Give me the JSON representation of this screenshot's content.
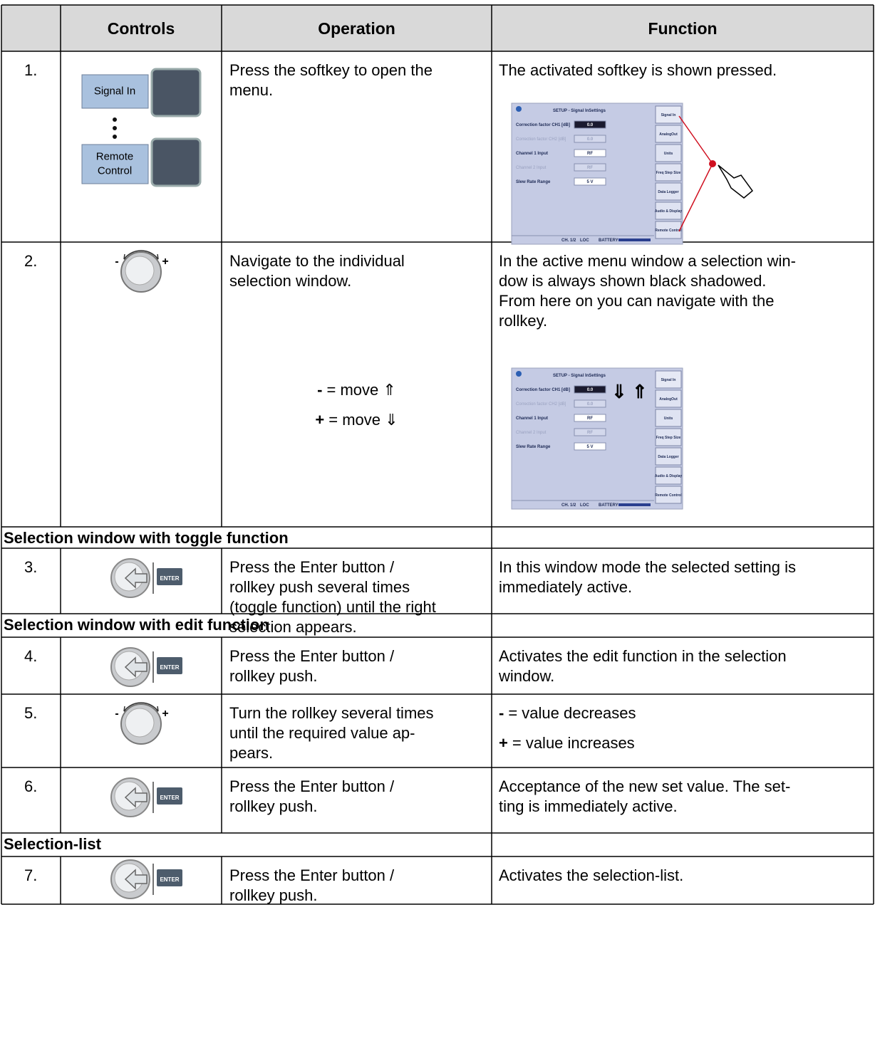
{
  "header": {
    "columns": [
      "Controls",
      "Operation",
      "Function"
    ]
  },
  "rows": [
    {
      "number": "1.",
      "softkeys": [
        [
          "Signal In"
        ],
        [
          "Remote",
          "Control"
        ]
      ],
      "operation": [
        "Press the softkey to open the",
        "menu."
      ],
      "function": [
        "The activated softkey is shown pressed."
      ],
      "screenshot": {
        "title": "SETUP - Signal InSettings",
        "fields": [
          {
            "label": "Correction factor CH1 [dB]",
            "value": "0.0"
          },
          {
            "label": "Correction factor CH2 [dB]",
            "value": "0.0"
          },
          {
            "label": "Channel 1 Input",
            "value": "RF"
          },
          {
            "label": "Channel 2 Input",
            "value": "RF"
          },
          {
            "label": "Slew Rate Range",
            "value": "5 V"
          }
        ],
        "softkeys": [
          "Signal In",
          "AnalogOut",
          "Units",
          "Freq Step Size",
          "Data Logger",
          "Audio & Display",
          "Remote Control"
        ],
        "status": [
          "CH. 1/2",
          "LOC",
          "BATTERY"
        ]
      }
    },
    {
      "number": "2.",
      "knob": [
        "-",
        "+"
      ],
      "operation": [
        "Navigate to the individual",
        "selection window."
      ],
      "moves": [
        {
          "sign": "-",
          "text": "= move ⇑"
        },
        {
          "sign": "+",
          "text": "= move ⇓"
        }
      ],
      "function": [
        "In the active menu window a selection win-",
        "dow is always shown black shadowed.",
        "From here on you can navigate with the",
        "rollkey."
      ],
      "screenshot": {
        "title": "SETUP - Signal InSettings",
        "arrows": "⇓ ⇑",
        "fields": [
          {
            "label": "Correction factor CH1 [dB]",
            "value": "0.0"
          },
          {
            "label": "Correction factor CH2 [dB]",
            "value": "0.0"
          },
          {
            "label": "Channel 1 Input",
            "value": "RF"
          },
          {
            "label": "Channel 2 Input",
            "value": "RF"
          },
          {
            "label": "Slew Rate Range",
            "value": "5 V"
          }
        ],
        "softkeys": [
          "Signal In",
          "AnalogOut",
          "Units",
          "Freq Step Size",
          "Data Logger",
          "Audio & Display",
          "Remote Control"
        ],
        "status": [
          "CH. 1/2",
          "LOC",
          "BATTERY"
        ]
      }
    },
    {
      "section": "Selection window with toggle function"
    },
    {
      "number": "3.",
      "enter_key": "ENTER",
      "operation": [
        "Press the Enter button /",
        "rollkey push several times",
        "(toggle function) until the right",
        "selection appears."
      ],
      "function": [
        "In this window mode the selected setting is",
        "immediately active."
      ]
    },
    {
      "section": "Selection window with edit function"
    },
    {
      "number": "4.",
      "enter_key": "ENTER",
      "operation": [
        "Press the Enter button /",
        "rollkey push."
      ],
      "function": [
        "Activates the edit function in the selection",
        "window."
      ]
    },
    {
      "number": "5.",
      "knob": [
        "-",
        "+"
      ],
      "operation": [
        "Turn the rollkey several times",
        "until the required value ap-",
        "pears."
      ],
      "function": [
        {
          "sign": "-",
          "text": "= value decreases"
        },
        {
          "sign": "+",
          "text": "= value increases"
        }
      ]
    },
    {
      "number": "6.",
      "enter_key": "ENTER",
      "operation": [
        "Press the Enter button /",
        "rollkey push."
      ],
      "function": [
        "Acceptance of the new set value. The set-",
        "ting is immediately active."
      ]
    },
    {
      "section": "Selection-list"
    },
    {
      "number": "7.",
      "enter_key": "ENTER",
      "operation": [
        "Press the Enter button /",
        "rollkey push."
      ],
      "function": [
        "Activates the selection-list."
      ]
    }
  ]
}
